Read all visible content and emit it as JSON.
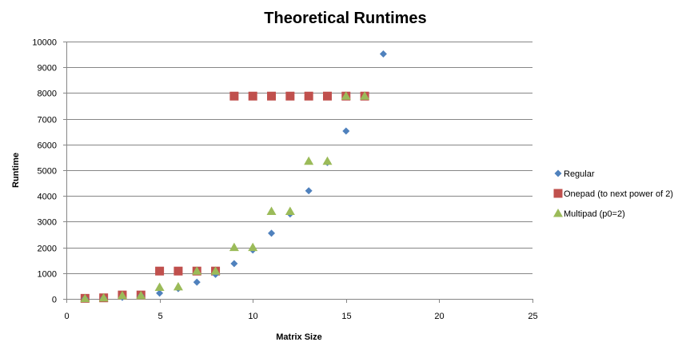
{
  "chart_data": {
    "type": "scatter",
    "title": "Theoretical Runtimes",
    "xlabel": "Matrix Size",
    "ylabel": "Runtime",
    "xlim": [
      0,
      25
    ],
    "ylim": [
      0,
      10000
    ],
    "xticks": [
      0,
      5,
      10,
      15,
      20,
      25
    ],
    "yticks": [
      0,
      1000,
      2000,
      3000,
      4000,
      5000,
      6000,
      7000,
      8000,
      9000,
      10000
    ],
    "grid": "horizontal",
    "legend_position": "right",
    "series": [
      {
        "name": "Regular",
        "marker": "diamond",
        "color": "#4F81BD",
        "x": [
          1,
          2,
          3,
          4,
          5,
          6,
          7,
          8,
          9,
          10,
          11,
          12,
          13,
          14,
          15,
          17
        ],
        "y": [
          10,
          30,
          60,
          120,
          220,
          400,
          650,
          950,
          1370,
          1900,
          2550,
          3300,
          4200,
          5300,
          6520,
          9520
        ]
      },
      {
        "name": "Onepad (to next power of 2)",
        "marker": "square",
        "color": "#C0504D",
        "x": [
          1,
          2,
          3,
          4,
          5,
          6,
          7,
          8,
          9,
          10,
          11,
          12,
          13,
          14,
          15,
          16
        ],
        "y": [
          20,
          40,
          150,
          150,
          1080,
          1080,
          1080,
          1080,
          7880,
          7880,
          7880,
          7880,
          7880,
          7880,
          7880,
          7880
        ]
      },
      {
        "name": "Multipad (p0=2)",
        "marker": "triangle",
        "color": "#9BBB59",
        "x": [
          1,
          2,
          3,
          4,
          5,
          6,
          7,
          8,
          9,
          10,
          11,
          12,
          13,
          14,
          15,
          16
        ],
        "y": [
          10,
          40,
          130,
          130,
          450,
          470,
          1080,
          1080,
          2000,
          2000,
          3400,
          3400,
          5350,
          5350,
          7880,
          7880
        ]
      }
    ]
  }
}
